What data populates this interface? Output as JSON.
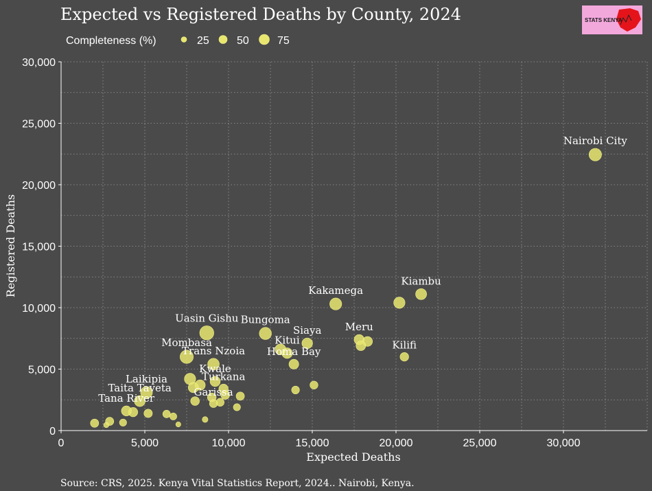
{
  "chart_data": {
    "type": "scatter",
    "title": "Expected vs Registered Deaths by County, 2024",
    "xlabel": "Expected Deaths",
    "ylabel": "Registered Deaths",
    "xlim": [
      0,
      35000
    ],
    "ylim": [
      0,
      30000
    ],
    "xticks": [
      0,
      5000,
      10000,
      15000,
      20000,
      25000,
      30000
    ],
    "xtick_labels": [
      "0",
      "5,000",
      "10,000",
      "15,000",
      "20,000",
      "25,000",
      "30,000"
    ],
    "yticks": [
      0,
      5000,
      10000,
      15000,
      20000,
      25000,
      30000
    ],
    "ytick_labels": [
      "0",
      "5,000",
      "10,000",
      "15,000",
      "20,000",
      "25,000",
      "30,000"
    ],
    "legend": {
      "title": "Completeness (%)",
      "position": "top-left",
      "entries": [
        {
          "label": "25",
          "value": 25
        },
        {
          "label": "50",
          "value": 50
        },
        {
          "label": "75",
          "value": 75
        }
      ]
    },
    "caption": "Source: CRS, 2025. Kenya Vital Statistics Report, 2024.. Nairobi, Kenya.",
    "logo_text": "STATS KENYA",
    "points": [
      {
        "label": "Nairobi City",
        "x": 31900,
        "y": 22450,
        "completeness": 70
      },
      {
        "label": "Kiambu",
        "x": 21500,
        "y": 11100,
        "completeness": 52
      },
      {
        "label": "",
        "x": 20200,
        "y": 10400,
        "completeness": 55
      },
      {
        "label": "Kakamega",
        "x": 16400,
        "y": 10300,
        "completeness": 63
      },
      {
        "label": "Meru",
        "x": 17800,
        "y": 7400,
        "completeness": 42
      },
      {
        "label": "",
        "x": 18300,
        "y": 7250,
        "completeness": 40
      },
      {
        "label": "",
        "x": 17900,
        "y": 6900,
        "completeness": 38
      },
      {
        "label": "Kilifi",
        "x": 20500,
        "y": 6000,
        "completeness": 29
      },
      {
        "label": "Uasin Gishu",
        "x": 8700,
        "y": 7950,
        "completeness": 92
      },
      {
        "label": "Bungoma",
        "x": 12200,
        "y": 7900,
        "completeness": 65
      },
      {
        "label": "Siaya",
        "x": 14700,
        "y": 7100,
        "completeness": 48
      },
      {
        "label": "",
        "x": 13100,
        "y": 6600,
        "completeness": 50
      },
      {
        "label": "Kitui",
        "x": 13500,
        "y": 6300,
        "completeness": 47
      },
      {
        "label": "Homa Bay",
        "x": 13900,
        "y": 5400,
        "completeness": 39
      },
      {
        "label": "",
        "x": 15100,
        "y": 3700,
        "completeness": 24
      },
      {
        "label": "",
        "x": 14000,
        "y": 3300,
        "completeness": 23
      },
      {
        "label": "Mombasa",
        "x": 7500,
        "y": 6000,
        "completeness": 80
      },
      {
        "label": "Trans Nzoia",
        "x": 9100,
        "y": 5400,
        "completeness": 59
      },
      {
        "label": "",
        "x": 7700,
        "y": 4200,
        "completeness": 55
      },
      {
        "label": "",
        "x": 8300,
        "y": 3700,
        "completeness": 45
      },
      {
        "label": "",
        "x": 7900,
        "y": 3500,
        "completeness": 44
      },
      {
        "label": "Kwale",
        "x": 9200,
        "y": 4000,
        "completeness": 43
      },
      {
        "label": "Turkana",
        "x": 9700,
        "y": 3400,
        "completeness": 35
      },
      {
        "label": "",
        "x": 9800,
        "y": 2900,
        "completeness": 30
      },
      {
        "label": "",
        "x": 10700,
        "y": 2800,
        "completeness": 26
      },
      {
        "label": "",
        "x": 9000,
        "y": 2700,
        "completeness": 30
      },
      {
        "label": "",
        "x": 9500,
        "y": 2300,
        "completeness": 24
      },
      {
        "label": "",
        "x": 8000,
        "y": 2400,
        "completeness": 30
      },
      {
        "label": "Garissa",
        "x": 9100,
        "y": 2200,
        "completeness": 24
      },
      {
        "label": "",
        "x": 10500,
        "y": 1900,
        "completeness": 18
      },
      {
        "label": "Laikipia",
        "x": 5100,
        "y": 3100,
        "completeness": 61
      },
      {
        "label": "Taita Taveta",
        "x": 4700,
        "y": 2400,
        "completeness": 51
      },
      {
        "label": "",
        "x": 4300,
        "y": 1500,
        "completeness": 35
      },
      {
        "label": "",
        "x": 5200,
        "y": 1400,
        "completeness": 27
      },
      {
        "label": "",
        "x": 6300,
        "y": 1350,
        "completeness": 21
      },
      {
        "label": "",
        "x": 6700,
        "y": 1150,
        "completeness": 17
      },
      {
        "label": "",
        "x": 8600,
        "y": 900,
        "completeness": 10
      },
      {
        "label": "",
        "x": 7000,
        "y": 500,
        "completeness": 7
      },
      {
        "label": "Tana River",
        "x": 3900,
        "y": 1600,
        "completeness": 41
      },
      {
        "label": "",
        "x": 2900,
        "y": 750,
        "completeness": 26
      },
      {
        "label": "",
        "x": 3700,
        "y": 650,
        "completeness": 18
      },
      {
        "label": "",
        "x": 2000,
        "y": 600,
        "completeness": 26
      },
      {
        "label": "",
        "x": 2700,
        "y": 450,
        "completeness": 8
      }
    ]
  }
}
